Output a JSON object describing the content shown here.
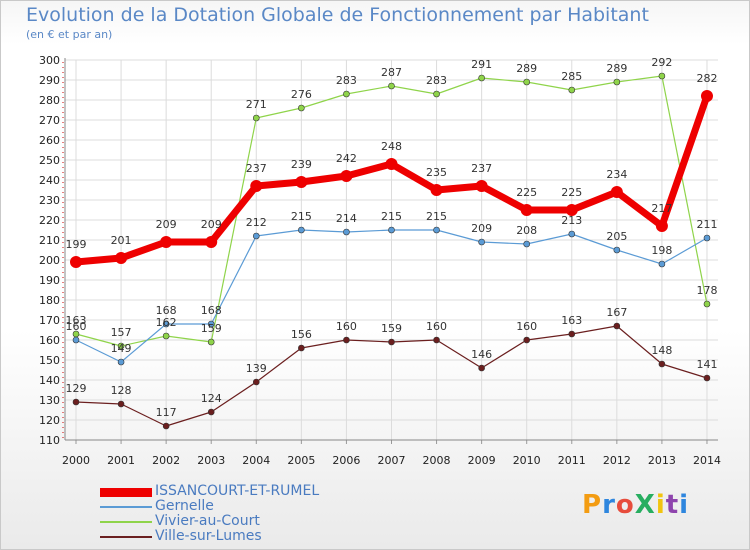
{
  "title": "Evolution de la Dotation Globale de Fonctionnement par Habitant",
  "subtitle": "(en € et par an)",
  "logo": "ProXiti",
  "colors": {
    "ISSANCOURT-ET-RUMEL": "#ee0000",
    "Gernelle": "#5b9bd5",
    "Vivier-au-Court": "#8fd44a",
    "Ville-sur-Lumes": "#6b1f1f",
    "grid": "#dcdcdc",
    "axis_red": "#cc0000"
  },
  "chart_data": {
    "type": "line",
    "title": "Evolution de la Dotation Globale de Fonctionnement par Habitant",
    "subtitle": "(en € et par an)",
    "xlabel": "",
    "ylabel": "",
    "ylim": [
      110,
      300
    ],
    "yticks": [
      110,
      120,
      130,
      140,
      150,
      160,
      170,
      180,
      190,
      200,
      210,
      220,
      230,
      240,
      250,
      260,
      270,
      280,
      290,
      300
    ],
    "x": [
      "2000",
      "2001",
      "2002",
      "2003",
      "2004",
      "2005",
      "2006",
      "2007",
      "2008",
      "2009",
      "2010",
      "2011",
      "2012",
      "2013",
      "2014"
    ],
    "legend_position": "bottom-left",
    "series": [
      {
        "name": "ISSANCOURT-ET-RUMEL",
        "values": [
          199,
          201,
          209,
          209,
          237,
          239,
          242,
          248,
          235,
          237,
          225,
          225,
          234,
          217,
          282
        ]
      },
      {
        "name": "Gernelle",
        "values": [
          160,
          149,
          168,
          168,
          212,
          215,
          214,
          215,
          215,
          209,
          208,
          213,
          205,
          198,
          211
        ]
      },
      {
        "name": "Vivier-au-Court",
        "values": [
          163,
          157,
          162,
          159,
          271,
          276,
          283,
          287,
          283,
          291,
          289,
          285,
          289,
          292,
          178
        ]
      },
      {
        "name": "Ville-sur-Lumes",
        "values": [
          129,
          128,
          117,
          124,
          139,
          156,
          160,
          159,
          160,
          146,
          160,
          163,
          167,
          148,
          141
        ]
      }
    ]
  }
}
